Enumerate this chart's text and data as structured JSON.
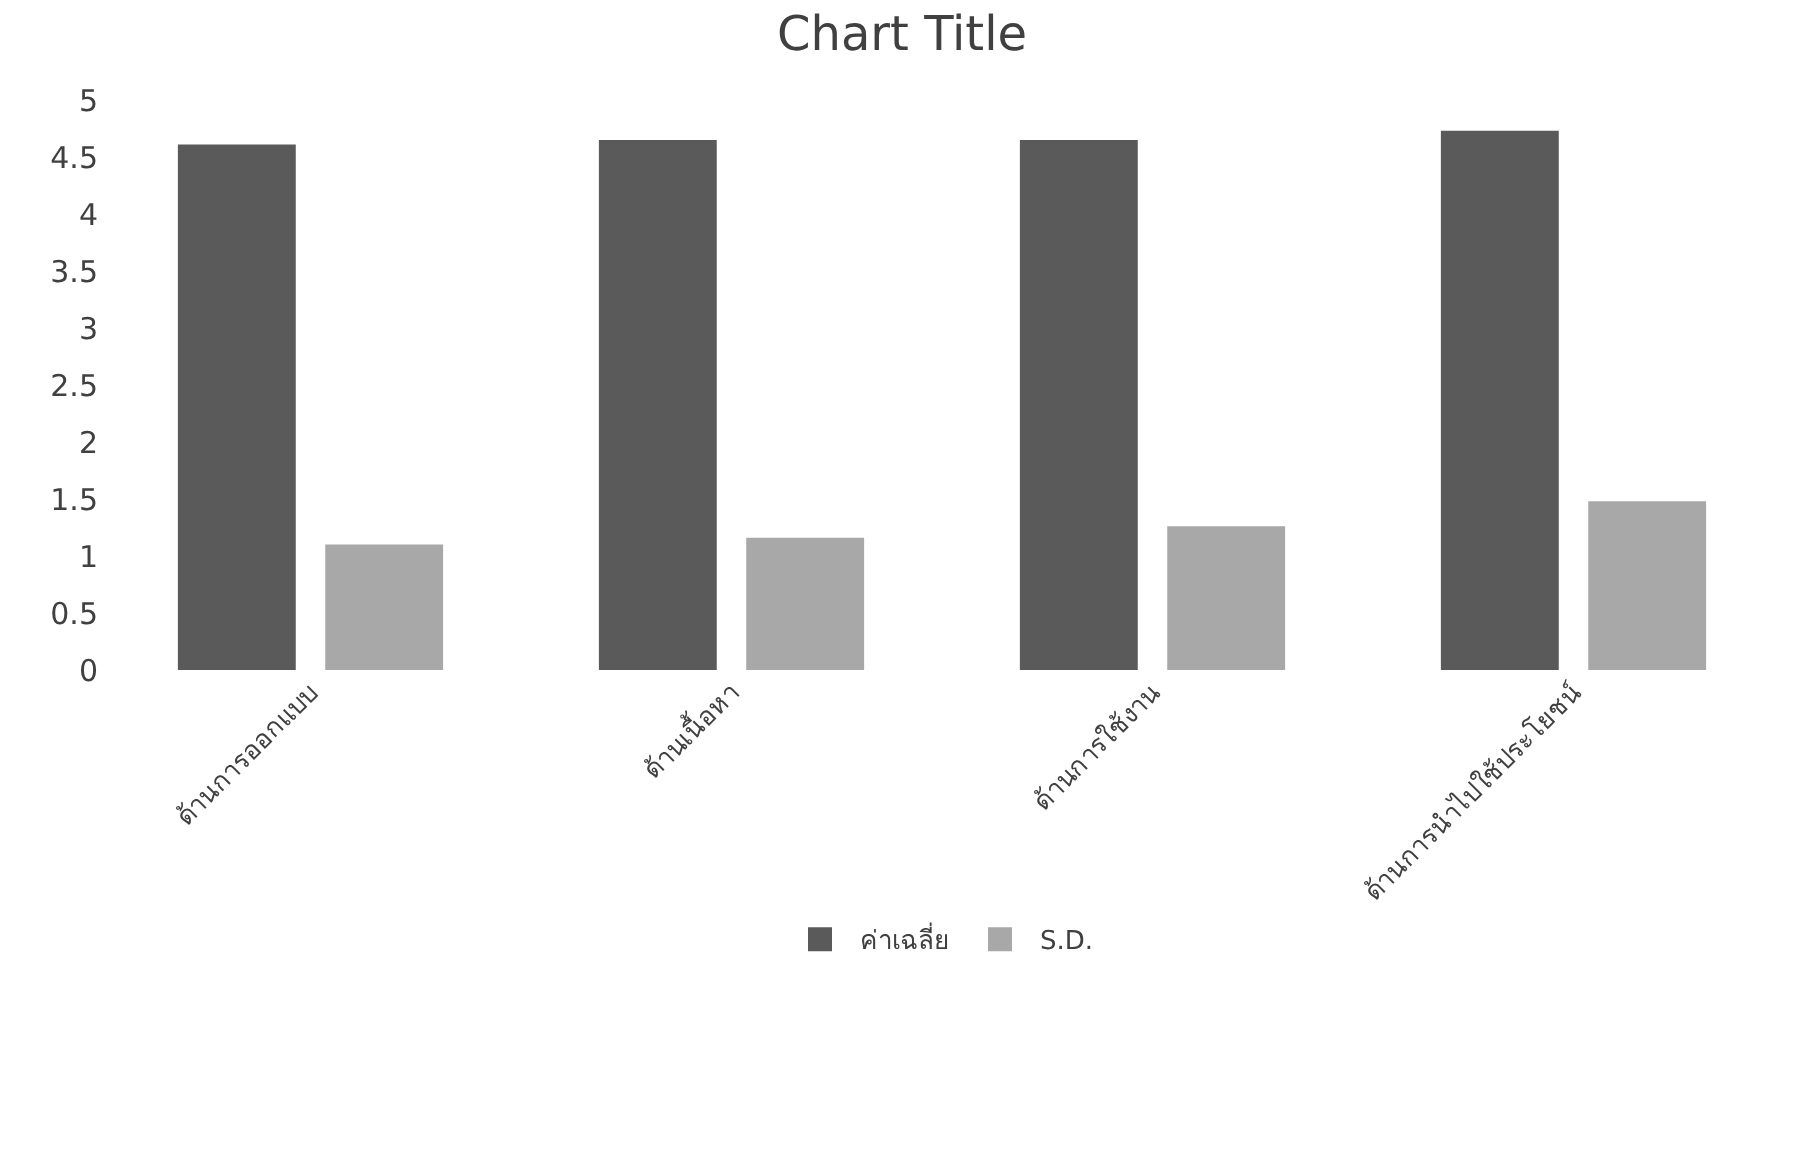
{
  "chart_data": {
    "type": "bar",
    "title": "Chart Title",
    "categories": [
      "ด้านการออกแบบ",
      "ด้านเนื้อหา",
      "ด้านการใช้งาน",
      "ด้านการนำไปใช้ประโยชน์"
    ],
    "series": [
      {
        "name": "ค่าเฉลี่ย",
        "color": "#5a5a5a",
        "values": [
          4.61,
          4.65,
          4.65,
          4.73
        ]
      },
      {
        "name": "S.D.",
        "color": "#a8a8a8",
        "values": [
          1.1,
          1.16,
          1.26,
          1.48
        ]
      }
    ],
    "ylim": [
      0,
      5
    ],
    "yticks": [
      0,
      0.5,
      1,
      1.5,
      2,
      2.5,
      3,
      3.5,
      4,
      4.5,
      5
    ],
    "grid": false,
    "legend": "bottom"
  }
}
